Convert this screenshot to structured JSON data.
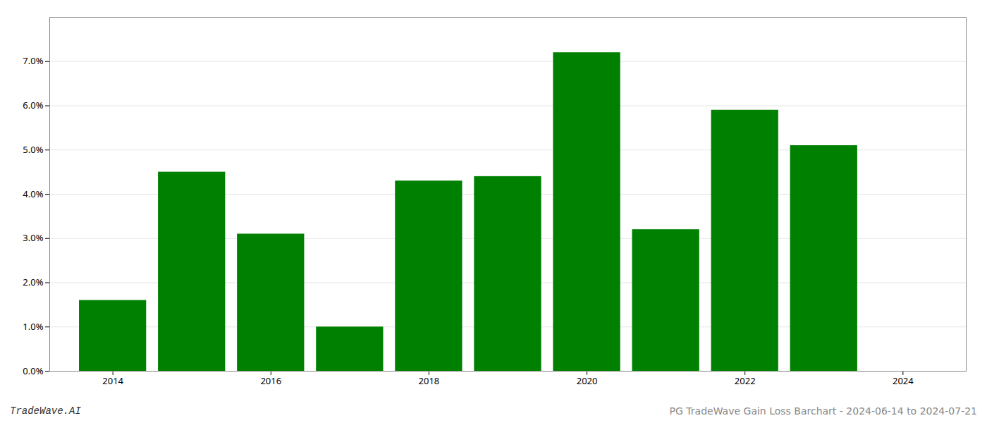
{
  "chart_data": {
    "type": "bar",
    "x": [
      2014,
      2015,
      2016,
      2017,
      2018,
      2019,
      2020,
      2021,
      2022,
      2023
    ],
    "values": [
      0.016,
      0.045,
      0.031,
      0.01,
      0.043,
      0.044,
      0.072,
      0.032,
      0.059,
      0.051
    ],
    "color": "#008000",
    "xlim": [
      2013.2,
      2024.8
    ],
    "xticks": [
      2014,
      2016,
      2018,
      2020,
      2022,
      2024
    ],
    "ylim": [
      0,
      0.08
    ],
    "yticks": [
      {
        "value": 0.0,
        "label": "0.0%"
      },
      {
        "value": 0.01,
        "label": "1.0%"
      },
      {
        "value": 0.02,
        "label": "2.0%"
      },
      {
        "value": 0.03,
        "label": "3.0%"
      },
      {
        "value": 0.04,
        "label": "4.0%"
      },
      {
        "value": 0.05,
        "label": "5.0%"
      },
      {
        "value": 0.06,
        "label": "6.0%"
      },
      {
        "value": 0.07,
        "label": "7.0%"
      }
    ],
    "grid": true,
    "annotations": [
      "TradeWave.AI",
      "PG TradeWave Gain Loss Barchart - 2024-06-14 to 2024-07-21"
    ]
  }
}
